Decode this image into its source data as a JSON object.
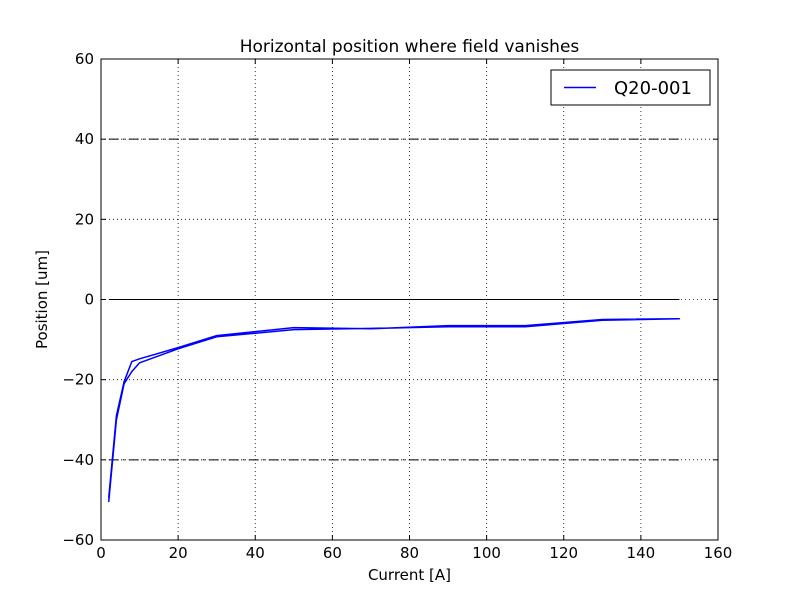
{
  "chart_data": {
    "type": "line",
    "title": "Horizontal position where field vanishes",
    "xlabel": "Current [A]",
    "ylabel": "Position [um]",
    "xlim": [
      0,
      160
    ],
    "ylim": [
      -60,
      60
    ],
    "x_ticks": [
      0,
      20,
      40,
      60,
      80,
      100,
      120,
      140,
      160
    ],
    "y_ticks": [
      -60,
      -40,
      -20,
      0,
      20,
      40,
      60
    ],
    "x_tick_labels": [
      "0",
      "20",
      "40",
      "60",
      "80",
      "100",
      "120",
      "140",
      "160"
    ],
    "y_tick_labels": [
      "−60",
      "−40",
      "−20",
      "0",
      "20",
      "40",
      "60"
    ],
    "grid": true,
    "legend_position": "top-right",
    "series": [
      {
        "name": "Q20-001",
        "color": "#0000ff",
        "x": [
          2,
          4,
          6,
          8,
          10,
          20,
          30,
          50,
          70,
          90,
          110,
          130,
          150,
          130,
          110,
          90,
          70,
          50,
          30,
          20,
          10,
          8,
          6,
          4,
          2
        ],
        "y": [
          -49.5,
          -29,
          -20.5,
          -15.5,
          -14.8,
          -12,
          -9,
          -7,
          -7.3,
          -6.5,
          -6.5,
          -5,
          -4.8,
          -5.2,
          -6.8,
          -6.8,
          -7.2,
          -7.5,
          -9.3,
          -12.3,
          -15.8,
          -18,
          -21,
          -30,
          -50.5
        ]
      }
    ],
    "reference_lines": [
      {
        "y": 40,
        "x_range": [
          2,
          150
        ],
        "color": "#000000",
        "style": "dash-dot"
      },
      {
        "y": 0,
        "x_range": [
          2,
          150
        ],
        "color": "#000000",
        "style": "solid"
      },
      {
        "y": -40,
        "x_range": [
          2,
          150
        ],
        "color": "#000000",
        "style": "dash-dot"
      }
    ]
  }
}
